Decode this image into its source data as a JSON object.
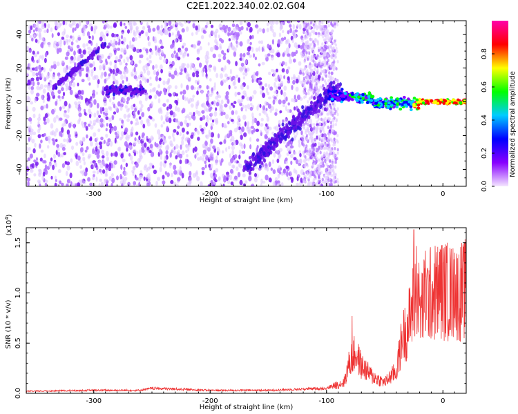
{
  "title": "C2E1.2022.340.02.02.G04",
  "chart_data": [
    {
      "type": "heatmap",
      "xlabel": "Height of straight line (km)",
      "ylabel": "Frequency (Hz)",
      "xlim": [
        -358,
        20
      ],
      "ylim": [
        -50,
        48
      ],
      "xticks": [
        -300,
        -200,
        -100,
        0
      ],
      "yticks": [
        -40,
        -20,
        0,
        20,
        40
      ],
      "colorbar": {
        "label": "Normalized spectral amplitude",
        "range": [
          0,
          1
        ],
        "ticks": [
          0.0,
          0.2,
          0.4,
          0.6,
          0.8
        ],
        "colors": [
          "#f4e6ff",
          "#8800ff",
          "#0000ff",
          "#00ccff",
          "#00ff00",
          "#ffff00",
          "#ff0000",
          "#ff00aa"
        ]
      },
      "features": [
        {
          "name": "diagonal streak",
          "x": [
            -335,
            -290
          ],
          "y": [
            8,
            34
          ]
        },
        {
          "name": "rising streak",
          "x": [
            -170,
            -90
          ],
          "y": [
            -40,
            10
          ]
        },
        {
          "name": "main band",
          "x": [
            -95,
            20
          ],
          "y": [
            0,
            0
          ]
        }
      ]
    },
    {
      "type": "line",
      "xlabel": "Height of straight line (km)",
      "ylabel": "SNR (10 * v/v)",
      "multiplier": "(x10",
      "multiplier_exp": "4",
      "multiplier_close": ")",
      "xlim": [
        -358,
        20
      ],
      "ylim": [
        0,
        1.65
      ],
      "xticks": [
        -300,
        -200,
        -100,
        0
      ],
      "yticks": [
        0.0,
        0.5,
        1.0,
        1.5
      ],
      "color": "#ee3333",
      "envelope_x": [
        -358,
        -300,
        -260,
        -250,
        -200,
        -150,
        -100,
        -85,
        -80,
        -75,
        -70,
        -60,
        -50,
        -40,
        -35,
        -30,
        -25,
        -22,
        -20,
        -15,
        -10,
        0,
        10,
        20
      ],
      "envelope_y": [
        0.02,
        0.03,
        0.03,
        0.05,
        0.03,
        0.03,
        0.05,
        0.12,
        0.35,
        0.45,
        0.3,
        0.18,
        0.12,
        0.25,
        0.6,
        0.75,
        1.0,
        1.25,
        0.9,
        1.05,
        1.1,
        1.15,
        1.1,
        1.15
      ],
      "peaks": [
        {
          "x": -25,
          "y": 1.63
        },
        {
          "x": -15,
          "y": 1.42
        },
        {
          "x": -2,
          "y": 1.43
        },
        {
          "x": 10,
          "y": 1.4
        },
        {
          "x": -78,
          "y": 0.77
        }
      ]
    }
  ]
}
